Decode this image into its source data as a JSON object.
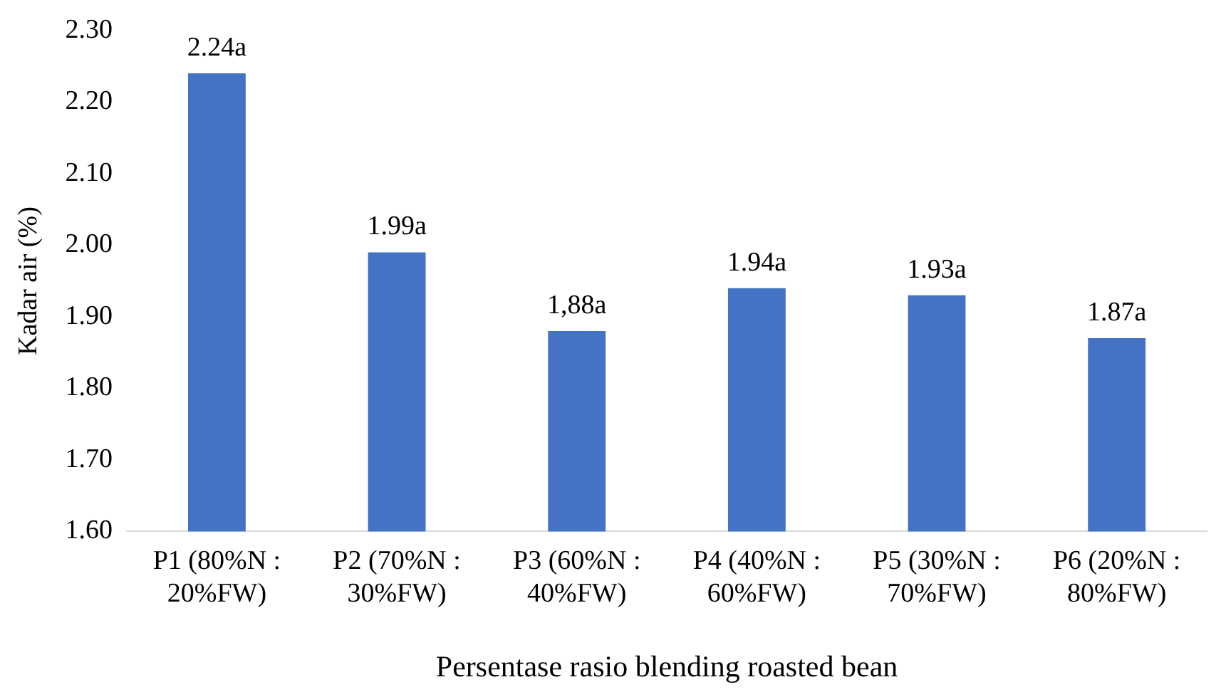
{
  "chart_data": {
    "type": "bar",
    "ylabel": "Kadar air (%)",
    "xlabel": "Persentase rasio blending roasted bean",
    "categories": [
      "P1 (80%N : 20%FW)",
      "P2 (70%N : 30%FW)",
      "P3 (60%N : 40%FW)",
      "P4 (40%N : 60%FW)",
      "P5 (30%N : 70%FW)",
      "P6 (20%N : 80%FW)"
    ],
    "values": [
      2.24,
      1.99,
      1.88,
      1.94,
      1.93,
      1.87
    ],
    "value_labels": [
      "2.24a",
      "1.99a",
      "1,88a",
      "1.94a",
      "1.93a",
      "1.87a"
    ],
    "color": "#4472c4",
    "ylim": [
      1.6,
      2.3
    ],
    "yticks": [
      {
        "value": 1.6,
        "label": "1.60"
      },
      {
        "value": 1.7,
        "label": "1.70"
      },
      {
        "value": 1.8,
        "label": "1.80"
      },
      {
        "value": 1.9,
        "label": "1.90"
      },
      {
        "value": 2.0,
        "label": "2.00"
      },
      {
        "value": 2.1,
        "label": "2.10"
      },
      {
        "value": 2.2,
        "label": "2.20"
      },
      {
        "value": 2.3,
        "label": "2.30"
      }
    ],
    "grid": false,
    "legend": false
  }
}
